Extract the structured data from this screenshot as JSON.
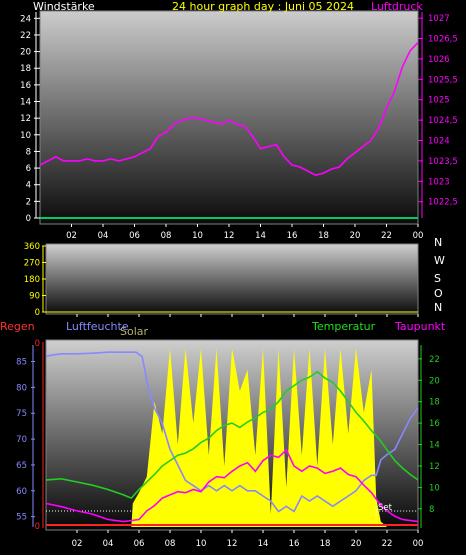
{
  "header": {
    "left": "Windstärke",
    "title": "24 hour graph day : Juni 05 2024",
    "right": "Luftdruck"
  },
  "panel2": {
    "directions": [
      "N",
      "W",
      "S",
      "O",
      "N"
    ]
  },
  "panel3": {
    "labels": {
      "regen": "Regen",
      "luftfeuchte": "Luftfeuchte",
      "solar": "Solar",
      "temperatur": "Temperatur",
      "taupunkt": "Taupunkt",
      "set": "Set"
    }
  },
  "colors": {
    "pressure": "#ff00ff",
    "wind_baseline": "#00cc66",
    "humidity": "#8888ff",
    "solar": "#ffff00",
    "temperature": "#22cc22",
    "dewpoint": "#ff00ff",
    "rain": "#ff2222",
    "regen_label": "#ff3333",
    "temp_label": "#22dd22",
    "wind_label": "#ffffff",
    "title_label": "#ffff00",
    "axis_left_3": "#8888ff"
  },
  "chart_data": [
    {
      "type": "line",
      "title": "24 hour graph day : Juni 05 2024",
      "x_ticks": [
        "02",
        "04",
        "06",
        "08",
        "10",
        "12",
        "14",
        "16",
        "18",
        "20",
        "22",
        "00"
      ],
      "left_axis": {
        "label": "Windstärke",
        "ylim": [
          0,
          25
        ],
        "ticks": [
          0,
          2,
          4,
          6,
          8,
          10,
          12,
          14,
          16,
          18,
          20,
          22,
          24
        ]
      },
      "right_axis": {
        "label": "Luftdruck",
        "ylim": [
          1022.1,
          1027.2
        ],
        "ticks": [
          "1022,5",
          "1023",
          "1023,5",
          "1024",
          "1024,5",
          "1025",
          "1025,5",
          "1026",
          "1026,5",
          "1027"
        ]
      },
      "series": [
        {
          "name": "Luftdruck",
          "axis": "right",
          "x": [
            0,
            0.5,
            1,
            1.5,
            2,
            2.5,
            3,
            3.5,
            4,
            4.5,
            5,
            5.5,
            6,
            6.5,
            7,
            7.5,
            8,
            8.5,
            9,
            9.5,
            10,
            10.5,
            11,
            11.5,
            12,
            12.5,
            13,
            13.5,
            14,
            14.5,
            15,
            15.5,
            16,
            16.5,
            17,
            17.5,
            18,
            18.5,
            19,
            19.5,
            20,
            20.5,
            21,
            21.5,
            22,
            22.5,
            23,
            23.5,
            24
          ],
          "values": [
            1023.4,
            1023.5,
            1023.6,
            1023.5,
            1023.5,
            1023.5,
            1023.55,
            1023.5,
            1023.5,
            1023.55,
            1023.5,
            1023.55,
            1023.6,
            1023.7,
            1023.8,
            1024.1,
            1024.2,
            1024.4,
            1024.5,
            1024.55,
            1024.55,
            1024.5,
            1024.45,
            1024.4,
            1024.5,
            1024.4,
            1024.35,
            1024.1,
            1023.8,
            1023.85,
            1023.9,
            1023.6,
            1023.4,
            1023.35,
            1023.25,
            1023.15,
            1023.2,
            1023.3,
            1023.35,
            1023.55,
            1023.7,
            1023.85,
            1024.0,
            1024.3,
            1024.8,
            1025.2,
            1025.8,
            1026.2,
            1026.4
          ]
        },
        {
          "name": "Windstärke",
          "axis": "left",
          "x": [
            0,
            24
          ],
          "values": [
            0,
            0
          ]
        }
      ]
    },
    {
      "type": "line",
      "x_ticks": [
        "02",
        "04",
        "06",
        "08",
        "10",
        "12",
        "14",
        "16",
        "18",
        "20",
        "22",
        "00"
      ],
      "left_axis": {
        "ylim": [
          0,
          360
        ],
        "ticks": [
          0,
          90,
          180,
          270,
          360
        ]
      },
      "right_axis": {
        "ticks": [
          "N",
          "W",
          "S",
          "O",
          "N"
        ]
      },
      "series": []
    },
    {
      "type": "line",
      "x_ticks": [
        "02",
        "04",
        "06",
        "08",
        "10",
        "12",
        "14",
        "16",
        "18",
        "20",
        "22",
        "00"
      ],
      "left_axis": {
        "ylim": [
          53,
          88
        ],
        "ticks": [
          55,
          60,
          65,
          70,
          75,
          80,
          85
        ]
      },
      "right_axis": {
        "ylim": [
          6.3,
          23.2
        ],
        "ticks": [
          8,
          10,
          12,
          14,
          16,
          18,
          20,
          22
        ]
      },
      "rain_axis": {
        "ticks": [
          0
        ]
      },
      "series": [
        {
          "name": "Luftfeuchte",
          "axis": "left",
          "x": [
            0,
            0.5,
            1,
            2,
            3,
            4,
            5,
            5.5,
            5.8,
            6.2,
            6.6,
            7,
            7.5,
            8,
            8.5,
            9,
            9.5,
            10,
            10.5,
            11,
            11.5,
            12,
            12.5,
            13,
            13.5,
            14,
            14.5,
            15,
            15.5,
            16,
            16.5,
            17,
            17.5,
            18,
            18.5,
            19,
            19.5,
            20,
            20.5,
            21,
            21.3,
            21.6,
            22,
            22.5,
            23,
            23.5,
            24
          ],
          "values": [
            86,
            86.3,
            86.5,
            86.5,
            86.6,
            86.8,
            86.8,
            86.8,
            86.8,
            86,
            80,
            76,
            73,
            68,
            65,
            62,
            61,
            60,
            61,
            60,
            61,
            60,
            61,
            60,
            60,
            59,
            58,
            56,
            57,
            56,
            59,
            58,
            59,
            58,
            57,
            58,
            59,
            60,
            62,
            63,
            63,
            66,
            67,
            68,
            71,
            74,
            76
          ]
        },
        {
          "name": "Solar",
          "axis": "right",
          "x": [
            0,
            5.5,
            5.6,
            6,
            6.5,
            7,
            7.5,
            8,
            8.5,
            9,
            9.5,
            10,
            10.5,
            11,
            11.5,
            12,
            12.5,
            13,
            13.5,
            14,
            14.5,
            15,
            15.5,
            16,
            16.5,
            17,
            17.5,
            18,
            18.5,
            19,
            19.5,
            20,
            20.5,
            21,
            21.3,
            21.6,
            22,
            24
          ],
          "values": [
            6.3,
            6.3,
            8.5,
            9.5,
            11,
            18,
            15,
            23,
            14,
            23,
            16,
            23,
            13,
            23,
            12,
            23,
            19,
            21,
            13,
            23,
            7.5,
            23,
            10,
            23,
            13,
            23,
            12,
            23,
            14,
            23,
            15,
            23,
            17,
            21,
            9,
            6.8,
            6.3,
            6.3
          ]
        },
        {
          "name": "Temperatur",
          "axis": "right",
          "x": [
            0,
            1,
            2,
            3,
            4,
            5,
            5.5,
            6,
            6.5,
            7,
            7.5,
            8,
            8.5,
            9,
            9.5,
            10,
            10.5,
            11,
            11.5,
            12,
            12.5,
            13,
            13.5,
            14,
            14.5,
            15,
            15.5,
            16,
            16.5,
            17,
            17.5,
            18,
            18.5,
            19,
            19.5,
            20,
            20.5,
            21,
            21.5,
            22,
            22.5,
            23,
            23.5,
            24
          ],
          "values": [
            10.7,
            10.8,
            10.5,
            10.2,
            9.8,
            9.3,
            9.0,
            9.8,
            10.5,
            11.2,
            12.0,
            12.5,
            13.0,
            13.2,
            13.6,
            14.2,
            14.6,
            15.3,
            15.8,
            16.0,
            15.6,
            16.1,
            16.5,
            17.0,
            17.3,
            18.0,
            19.0,
            19.5,
            20.0,
            20.3,
            20.8,
            20.2,
            19.8,
            19.0,
            18.0,
            17.0,
            16.2,
            15.3,
            14.5,
            13.5,
            12.5,
            11.8,
            11.2,
            10.7
          ]
        },
        {
          "name": "Taupunkt",
          "axis": "right",
          "x": [
            0,
            1,
            2,
            3,
            4,
            5,
            6,
            6.5,
            7,
            7.5,
            8,
            8.5,
            9,
            9.5,
            10,
            10.5,
            11,
            11.5,
            12,
            12.5,
            13,
            13.5,
            14,
            14.5,
            15,
            15.5,
            16,
            16.5,
            17,
            17.5,
            18,
            18.5,
            19,
            19.5,
            20,
            20.5,
            21,
            21.5,
            22,
            22.5,
            23,
            24
          ],
          "values": [
            8.5,
            8.2,
            7.8,
            7.5,
            7.0,
            6.8,
            7.0,
            7.8,
            8.3,
            9.0,
            9.3,
            9.6,
            9.5,
            9.8,
            9.6,
            10.5,
            11.0,
            10.9,
            11.5,
            12.0,
            12.3,
            11.5,
            12.5,
            13.0,
            12.8,
            13.5,
            12.0,
            11.5,
            12.0,
            11.8,
            11.3,
            11.5,
            11.8,
            11.2,
            11.0,
            10.2,
            9.5,
            8.5,
            7.8,
            7.3,
            7.0,
            6.8
          ]
        },
        {
          "name": "Regen",
          "axis": "rain",
          "x": [
            0,
            24
          ],
          "values": [
            0,
            0
          ]
        }
      ]
    }
  ]
}
